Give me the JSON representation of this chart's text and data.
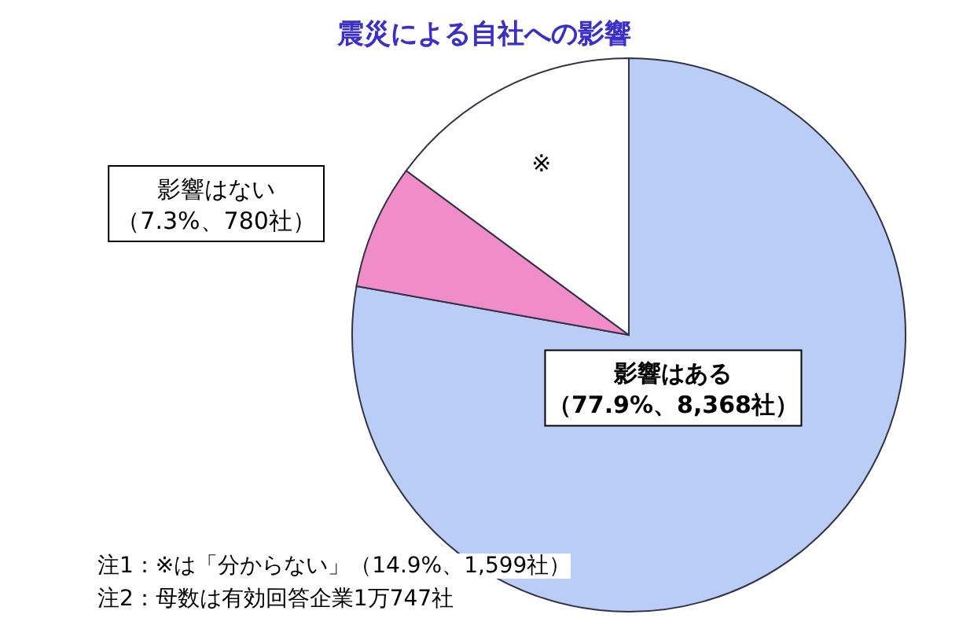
{
  "chart_data": {
    "type": "pie",
    "title": "震災による自社への影響",
    "categories": [
      "影響はある",
      "影響はない",
      "※"
    ],
    "values": [
      77.9,
      7.3,
      14.9
    ],
    "colors": [
      "#b9cdf7",
      "#f08cc8",
      "#ffffff"
    ],
    "value_labels": [
      "（77.9%、8,368社）",
      "（7.3%、780社）",
      null
    ],
    "annotations": [
      "注1：※は「分からない」（14.9%、1,599社）",
      "注2：母数は有効回答企業1万747社"
    ]
  }
}
